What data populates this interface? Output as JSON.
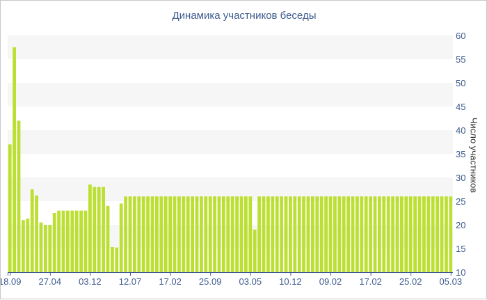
{
  "chart_data": {
    "type": "bar",
    "title": "Динамика участников беседы",
    "ylabel": "Число участников",
    "ylim": [
      10,
      60
    ],
    "yticks": [
      10,
      15,
      20,
      25,
      30,
      35,
      40,
      45,
      50,
      55,
      60
    ],
    "y_axis_position": "right",
    "grid": "alternating horizontal bands",
    "bar_color": "#bcdf33",
    "band_color": "#f6f6f6",
    "xtick_labels": [
      {
        "index": 0,
        "label": "18.09"
      },
      {
        "index": 9,
        "label": "27.04"
      },
      {
        "index": 18,
        "label": "03.12"
      },
      {
        "index": 27,
        "label": "12.07"
      },
      {
        "index": 36,
        "label": "17.02"
      },
      {
        "index": 45,
        "label": "25.09"
      },
      {
        "index": 54,
        "label": "03.05"
      },
      {
        "index": 63,
        "label": "10.12"
      },
      {
        "index": 72,
        "label": "09.02"
      },
      {
        "index": 81,
        "label": "17.02"
      },
      {
        "index": 90,
        "label": "25.02"
      },
      {
        "index": 99,
        "label": "05.03"
      }
    ],
    "values": [
      37,
      57.5,
      42,
      21,
      21.3,
      27.5,
      26.2,
      20.5,
      20,
      20,
      22.5,
      23,
      23,
      23,
      23,
      23,
      23,
      23,
      28.5,
      28,
      28,
      28,
      24,
      15.3,
      15.2,
      24.5,
      26,
      26,
      26,
      26,
      26,
      26,
      26,
      26,
      26,
      26,
      26,
      26,
      26,
      26,
      26,
      26,
      26,
      26,
      26,
      26,
      26,
      26,
      26,
      26,
      26,
      26,
      26,
      26,
      26,
      19,
      26,
      26,
      26,
      26,
      26,
      26,
      26,
      26,
      26,
      26,
      26,
      26,
      26,
      26,
      26,
      26,
      26,
      26,
      26,
      26,
      26,
      26,
      26,
      26,
      26,
      26,
      26,
      26,
      26,
      26,
      26,
      26,
      26,
      26,
      26,
      26,
      26,
      26,
      26,
      26,
      26,
      26,
      26,
      26
    ]
  }
}
